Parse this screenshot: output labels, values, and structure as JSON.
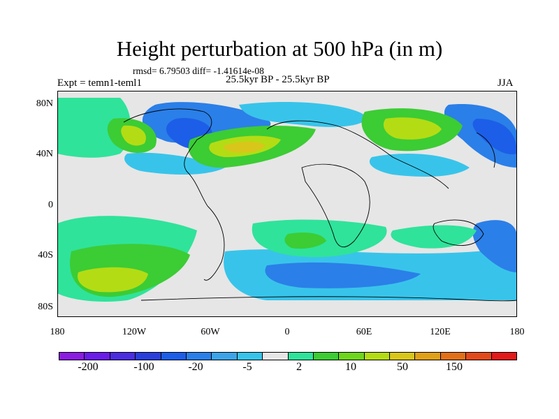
{
  "title": "Height perturbation at 500 hPa (in m)",
  "stats": "rmsd= 6.79503 diff= -1.41614e-08",
  "left_label": "Expt = temn1-teml1",
  "center_label": "25.5kyr BP - 25.5kyr BP",
  "right_label": "JJA",
  "lat_ticks": [
    "80N",
    "40N",
    "0",
    "40S",
    "80S"
  ],
  "lon_ticks": [
    "180",
    "120W",
    "60W",
    "0",
    "60E",
    "120E",
    "180"
  ],
  "colorbar": {
    "colors": [
      "#8a1de0",
      "#6a1ce8",
      "#4a2ee0",
      "#2a3edb",
      "#1c5ee8",
      "#2b7fe8",
      "#3da4e8",
      "#38c4ea",
      "#e6e6e6",
      "#2fe39a",
      "#3ccc34",
      "#6ed61c",
      "#b4dc14",
      "#d9c61a",
      "#e0a018",
      "#e27018",
      "#e24a1c",
      "#e21a1a"
    ],
    "labels": [
      "-200",
      "-100",
      "-20",
      "-5",
      "2",
      "10",
      "50",
      "150"
    ]
  },
  "colors": {
    "background": "#e6e6e6",
    "neg_strong": "#1c5ee8",
    "neg_mid": "#2b7fe8",
    "neg_weak": "#38c4ea",
    "pos_weak": "#2fe39a",
    "pos_mid": "#3ccc34",
    "pos_strong": "#b4dc14",
    "pos_peak": "#d9c61a"
  }
}
